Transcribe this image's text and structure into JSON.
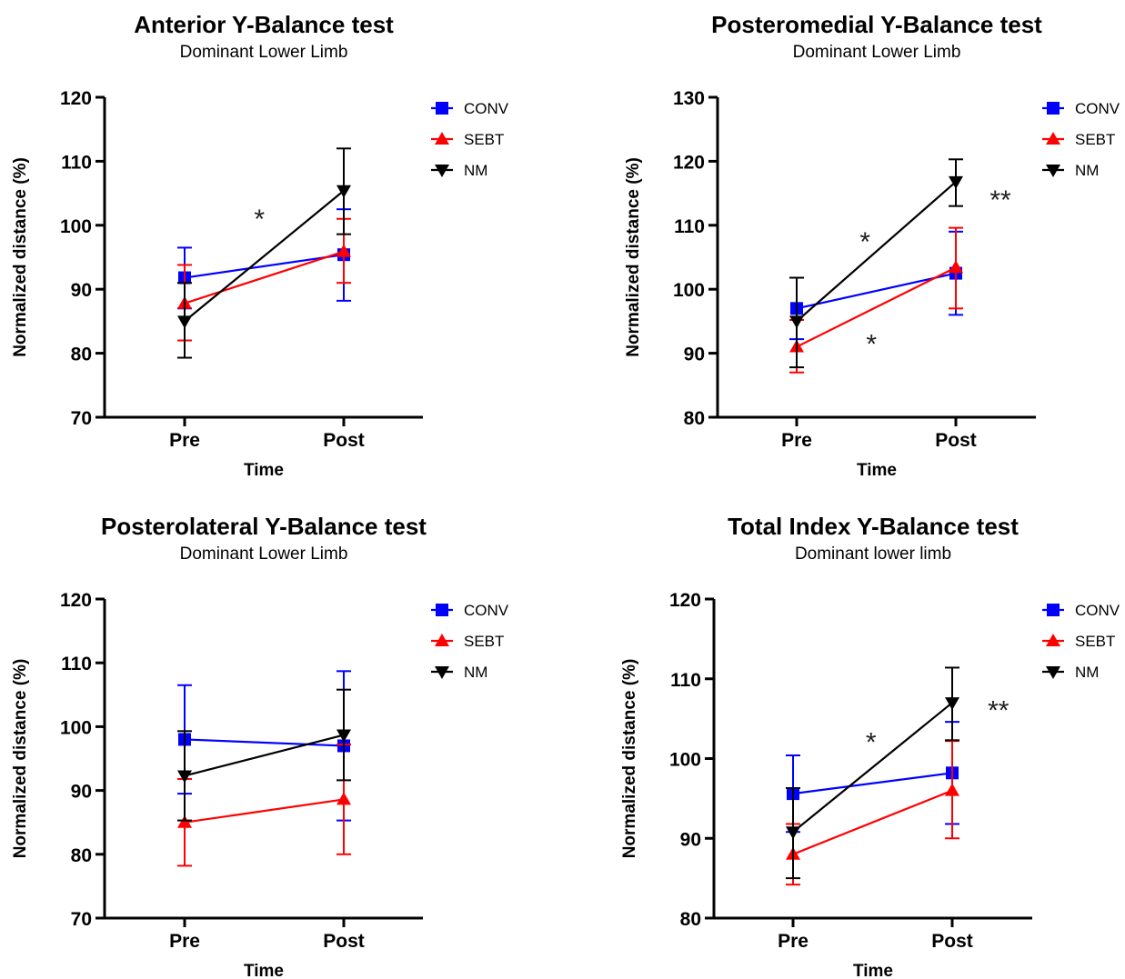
{
  "chart_data": [
    {
      "type": "line",
      "title": "Anterior Y-Balance test",
      "subtitle": "Dominant Lower Limb",
      "xlabel": "Time",
      "ylabel": "Normalized distance (%)",
      "categories": [
        "Pre",
        "Post"
      ],
      "ylim": [
        70,
        120
      ],
      "yticks": [
        70,
        80,
        90,
        100,
        110,
        120
      ],
      "legend_position": "top-right",
      "series": [
        {
          "name": "CONV",
          "color": "#0000FF",
          "marker": "square",
          "values": [
            91.8,
            95.4
          ],
          "err_low": [
            87.0,
            88.2
          ],
          "err_high": [
            96.5,
            102.5
          ]
        },
        {
          "name": "SEBT",
          "color": "#FF0000",
          "marker": "triangle-up",
          "values": [
            87.8,
            95.9
          ],
          "err_low": [
            82.0,
            91.0
          ],
          "err_high": [
            93.8,
            101.0
          ]
        },
        {
          "name": "NM",
          "color": "#000000",
          "marker": "triangle-down",
          "values": [
            85.0,
            105.4
          ],
          "err_low": [
            79.3,
            98.6
          ],
          "err_high": [
            91.0,
            112.0
          ]
        }
      ],
      "annotations": [
        {
          "text": "*",
          "x": 0.47,
          "y": 101.5
        }
      ]
    },
    {
      "type": "line",
      "title": "Posteromedial Y-Balance test",
      "subtitle": "Dominant Lower Limb",
      "xlabel": "Time",
      "ylabel": "Normalized distance (%)",
      "categories": [
        "Pre",
        "Post"
      ],
      "ylim": [
        80,
        130
      ],
      "yticks": [
        80,
        90,
        100,
        110,
        120,
        130
      ],
      "legend_position": "top-right",
      "series": [
        {
          "name": "CONV",
          "color": "#0000FF",
          "marker": "square",
          "values": [
            97.0,
            102.5
          ],
          "err_low": [
            92.2,
            96.0
          ],
          "err_high": [
            101.8,
            109.0
          ]
        },
        {
          "name": "SEBT",
          "color": "#FF0000",
          "marker": "triangle-up",
          "values": [
            91.0,
            103.4
          ],
          "err_low": [
            87.0,
            97.0
          ],
          "err_high": [
            95.2,
            109.6
          ]
        },
        {
          "name": "NM",
          "color": "#000000",
          "marker": "triangle-down",
          "values": [
            95.0,
            116.8
          ],
          "err_low": [
            87.8,
            113.0
          ],
          "err_high": [
            101.8,
            120.3
          ]
        }
      ],
      "annotations": [
        {
          "text": "*",
          "x": 0.43,
          "y": 108.0
        },
        {
          "text": "*",
          "x": 0.47,
          "y": 92.0
        },
        {
          "text": "**",
          "x": 1.28,
          "y": 114.5
        }
      ]
    },
    {
      "type": "line",
      "title": "Posterolateral Y-Balance test",
      "subtitle": "Dominant Lower Limb",
      "xlabel": "Time",
      "ylabel": "Normalized distance (%)",
      "categories": [
        "Pre",
        "Post"
      ],
      "ylim": [
        70,
        120
      ],
      "yticks": [
        70,
        80,
        90,
        100,
        110,
        120
      ],
      "legend_position": "top-right",
      "series": [
        {
          "name": "CONV",
          "color": "#0000FF",
          "marker": "square",
          "values": [
            98.0,
            97.0
          ],
          "err_low": [
            89.5,
            85.3
          ],
          "err_high": [
            106.5,
            108.7
          ]
        },
        {
          "name": "SEBT",
          "color": "#FF0000",
          "marker": "triangle-up",
          "values": [
            85.0,
            88.6
          ],
          "err_low": [
            78.2,
            80.0
          ],
          "err_high": [
            91.8,
            97.2
          ]
        },
        {
          "name": "NM",
          "color": "#000000",
          "marker": "triangle-down",
          "values": [
            92.3,
            98.7
          ],
          "err_low": [
            85.3,
            91.6
          ],
          "err_high": [
            99.3,
            105.8
          ]
        }
      ],
      "annotations": []
    },
    {
      "type": "line",
      "title": "Total Index Y-Balance test",
      "subtitle": "Dominant lower limb",
      "xlabel": "Time",
      "ylabel": "Normalized distance (%)",
      "categories": [
        "Pre",
        "Post"
      ],
      "ylim": [
        80,
        120
      ],
      "yticks": [
        80,
        90,
        100,
        110,
        120
      ],
      "legend_position": "top-right",
      "series": [
        {
          "name": "CONV",
          "color": "#0000FF",
          "marker": "square",
          "values": [
            95.6,
            98.2
          ],
          "err_low": [
            90.8,
            91.8
          ],
          "err_high": [
            100.4,
            104.6
          ]
        },
        {
          "name": "SEBT",
          "color": "#FF0000",
          "marker": "triangle-up",
          "values": [
            88.0,
            96.0
          ],
          "err_low": [
            84.2,
            90.0
          ],
          "err_high": [
            91.8,
            102.2
          ]
        },
        {
          "name": "NM",
          "color": "#000000",
          "marker": "triangle-down",
          "values": [
            90.8,
            107.0
          ],
          "err_low": [
            85.0,
            102.3
          ],
          "err_high": [
            96.3,
            111.4
          ]
        }
      ],
      "annotations": [
        {
          "text": "*",
          "x": 0.49,
          "y": 102.5
        },
        {
          "text": "**",
          "x": 1.29,
          "y": 106.5
        }
      ]
    }
  ]
}
